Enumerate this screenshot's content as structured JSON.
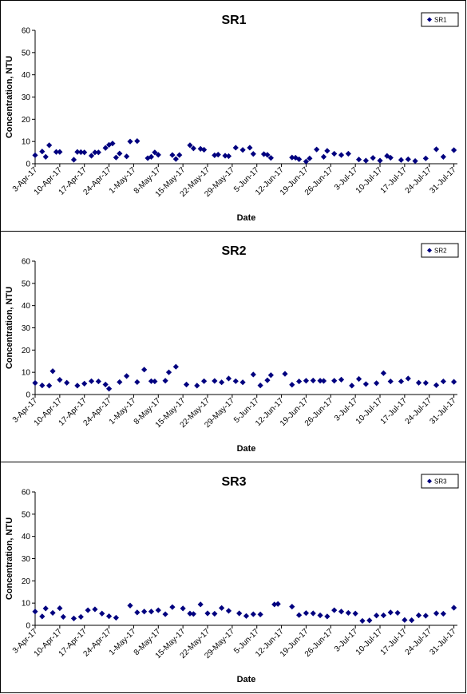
{
  "chart_data": [
    {
      "type": "scatter",
      "title": "SR1",
      "xlabel": "Date",
      "ylabel": "Concentration, NTU",
      "ylim": [
        0,
        60
      ],
      "yticks": [
        "0",
        "10",
        "20",
        "30",
        "40",
        "50",
        "60"
      ],
      "xlim": [
        "2017-04-03",
        "2017-08-01"
      ],
      "xtick_labels": [
        "3-Apr-17",
        "10-Apr-17",
        "17-Apr-17",
        "24-Apr-17",
        "1-May-17",
        "8-May-17",
        "15-May-17",
        "22-May-17",
        "29-May-17",
        "5-Jun-17",
        "12-Jun-17",
        "19-Jun-17",
        "26-Jun-17",
        "3-Jul-17",
        "10-Jul-17",
        "17-Jul-17",
        "24-Jul-17",
        "31-Jul-17"
      ],
      "grid": false,
      "legend_position": "top-right",
      "marker_color": "#00007f",
      "series": [
        {
          "name": "SR1",
          "x": [
            "2017-04-03",
            "2017-04-05",
            "2017-04-06",
            "2017-04-07",
            "2017-04-09",
            "2017-04-10",
            "2017-04-14",
            "2017-04-15",
            "2017-04-16",
            "2017-04-17",
            "2017-04-19",
            "2017-04-20",
            "2017-04-21",
            "2017-04-23",
            "2017-04-24",
            "2017-04-25",
            "2017-04-26",
            "2017-04-27",
            "2017-04-29",
            "2017-04-30",
            "2017-05-02",
            "2017-05-05",
            "2017-05-06",
            "2017-05-07",
            "2017-05-08",
            "2017-05-12",
            "2017-05-13",
            "2017-05-14",
            "2017-05-17",
            "2017-05-18",
            "2017-05-20",
            "2017-05-21",
            "2017-05-24",
            "2017-05-25",
            "2017-05-27",
            "2017-05-28",
            "2017-05-30",
            "2017-06-01",
            "2017-06-03",
            "2017-06-04",
            "2017-06-07",
            "2017-06-08",
            "2017-06-09",
            "2017-06-15",
            "2017-06-16",
            "2017-06-17",
            "2017-06-19",
            "2017-06-20",
            "2017-06-22",
            "2017-06-24",
            "2017-06-25",
            "2017-06-27",
            "2017-06-29",
            "2017-07-01",
            "2017-07-04",
            "2017-07-06",
            "2017-07-08",
            "2017-07-10",
            "2017-07-12",
            "2017-07-13",
            "2017-07-16",
            "2017-07-18",
            "2017-07-20",
            "2017-07-23",
            "2017-07-26",
            "2017-07-28",
            "2017-07-31"
          ],
          "y": [
            3.8,
            5.5,
            3.1,
            8.3,
            5.3,
            5.3,
            1.8,
            5.3,
            5.2,
            5.1,
            3.6,
            5.1,
            5.1,
            7.1,
            8.5,
            9.1,
            2.8,
            4.6,
            3.3,
            10.0,
            10.2,
            2.5,
            3.1,
            5.1,
            4.0,
            3.9,
            2.1,
            3.9,
            8.3,
            6.9,
            6.7,
            6.3,
            3.8,
            4.1,
            3.6,
            3.4,
            7.2,
            6.2,
            7.2,
            4.4,
            4.3,
            4.0,
            2.6,
            2.8,
            2.7,
            2.0,
            1.0,
            2.4,
            6.4,
            3.1,
            5.8,
            4.5,
            3.9,
            4.5,
            1.9,
            1.4,
            2.6,
            1.4,
            3.5,
            2.7,
            1.7,
            2.0,
            1.2,
            2.4,
            6.5,
            3.1,
            6.1
          ]
        }
      ]
    },
    {
      "type": "scatter",
      "title": "SR2",
      "xlabel": "Date",
      "ylabel": "Concentration, NTU",
      "ylim": [
        0,
        60
      ],
      "yticks": [
        "0",
        "10",
        "20",
        "30",
        "40",
        "50",
        "60"
      ],
      "xlim": [
        "2017-04-03",
        "2017-08-01"
      ],
      "xtick_labels": [
        "3-Apr-17",
        "10-Apr-17",
        "17-Apr-17",
        "24-Apr-17",
        "1-May-17",
        "8-May-17",
        "15-May-17",
        "22-May-17",
        "29-May-17",
        "5-Jun-17",
        "12-Jun-17",
        "19-Jun-17",
        "26-Jun-17",
        "3-Jul-17",
        "10-Jul-17",
        "17-Jul-17",
        "24-Jul-17",
        "31-Jul-17"
      ],
      "grid": false,
      "legend_position": "top-right",
      "marker_color": "#00007f",
      "series": [
        {
          "name": "SR2",
          "x": [
            "2017-04-03",
            "2017-04-05",
            "2017-04-07",
            "2017-04-08",
            "2017-04-10",
            "2017-04-12",
            "2017-04-15",
            "2017-04-17",
            "2017-04-19",
            "2017-04-21",
            "2017-04-23",
            "2017-04-24",
            "2017-04-27",
            "2017-04-29",
            "2017-05-02",
            "2017-05-04",
            "2017-05-06",
            "2017-05-07",
            "2017-05-10",
            "2017-05-11",
            "2017-05-13",
            "2017-05-16",
            "2017-05-19",
            "2017-05-21",
            "2017-05-24",
            "2017-05-26",
            "2017-05-28",
            "2017-05-30",
            "2017-06-01",
            "2017-06-04",
            "2017-06-06",
            "2017-06-08",
            "2017-06-09",
            "2017-06-13",
            "2017-06-15",
            "2017-06-17",
            "2017-06-19",
            "2017-06-21",
            "2017-06-23",
            "2017-06-24",
            "2017-06-27",
            "2017-06-29",
            "2017-07-02",
            "2017-07-04",
            "2017-07-06",
            "2017-07-09",
            "2017-07-11",
            "2017-07-13",
            "2017-07-16",
            "2017-07-18",
            "2017-07-21",
            "2017-07-23",
            "2017-07-26",
            "2017-07-28",
            "2017-07-31"
          ],
          "y": [
            5.2,
            4.1,
            4.0,
            10.5,
            6.6,
            5.3,
            4.0,
            4.9,
            6.0,
            5.9,
            4.5,
            2.6,
            5.6,
            8.3,
            5.6,
            11.2,
            6.0,
            5.9,
            6.2,
            10.0,
            12.5,
            4.5,
            4.0,
            6.0,
            6.1,
            5.5,
            7.2,
            6.0,
            5.5,
            9.0,
            4.1,
            6.4,
            8.7,
            9.3,
            4.4,
            5.9,
            6.2,
            6.3,
            6.2,
            6.1,
            6.2,
            6.7,
            4.0,
            7.0,
            4.7,
            5.1,
            9.6,
            5.9,
            5.9,
            7.2,
            5.3,
            5.2,
            4.2,
            5.9,
            5.7
          ]
        }
      ]
    },
    {
      "type": "scatter",
      "title": "SR3",
      "xlabel": "Date",
      "ylabel": "Concentration, NTU",
      "ylim": [
        0,
        60
      ],
      "yticks": [
        "0",
        "10",
        "20",
        "30",
        "40",
        "50",
        "60"
      ],
      "xlim": [
        "2017-04-03",
        "2017-08-01"
      ],
      "xtick_labels": [
        "3-Apr-17",
        "10-Apr-17",
        "17-Apr-17",
        "24-Apr-17",
        "1-May-17",
        "8-May-17",
        "15-May-17",
        "22-May-17",
        "29-May-17",
        "5-Jun-17",
        "12-Jun-17",
        "19-Jun-17",
        "26-Jun-17",
        "3-Jul-17",
        "10-Jul-17",
        "17-Jul-17",
        "24-Jul-17",
        "31-Jul-17"
      ],
      "grid": false,
      "legend_position": "top-right",
      "marker_color": "#00007f",
      "series": [
        {
          "name": "SR3",
          "x": [
            "2017-04-03",
            "2017-04-05",
            "2017-04-06",
            "2017-04-08",
            "2017-04-10",
            "2017-04-11",
            "2017-04-14",
            "2017-04-16",
            "2017-04-18",
            "2017-04-20",
            "2017-04-22",
            "2017-04-24",
            "2017-04-26",
            "2017-04-30",
            "2017-05-02",
            "2017-05-04",
            "2017-05-06",
            "2017-05-08",
            "2017-05-10",
            "2017-05-12",
            "2017-05-15",
            "2017-05-17",
            "2017-05-18",
            "2017-05-20",
            "2017-05-22",
            "2017-05-24",
            "2017-05-26",
            "2017-05-28",
            "2017-05-31",
            "2017-06-02",
            "2017-06-04",
            "2017-06-06",
            "2017-06-10",
            "2017-06-11",
            "2017-06-15",
            "2017-06-17",
            "2017-06-19",
            "2017-06-21",
            "2017-06-23",
            "2017-06-25",
            "2017-06-27",
            "2017-06-29",
            "2017-07-01",
            "2017-07-03",
            "2017-07-05",
            "2017-07-07",
            "2017-07-09",
            "2017-07-11",
            "2017-07-13",
            "2017-07-15",
            "2017-07-17",
            "2017-07-19",
            "2017-07-21",
            "2017-07-23",
            "2017-07-26",
            "2017-07-28",
            "2017-07-31"
          ],
          "y": [
            6.2,
            4.0,
            7.6,
            5.6,
            7.7,
            3.8,
            3.1,
            3.8,
            6.8,
            7.2,
            5.3,
            4.1,
            3.4,
            8.9,
            5.8,
            6.2,
            6.2,
            6.8,
            5.0,
            8.2,
            7.6,
            5.3,
            5.1,
            9.4,
            5.4,
            5.2,
            7.8,
            6.5,
            5.4,
            4.2,
            5.0,
            4.9,
            9.4,
            9.6,
            8.4,
            4.6,
            5.5,
            5.4,
            4.5,
            4.0,
            6.8,
            6.2,
            5.6,
            5.3,
            2.0,
            2.2,
            4.4,
            4.5,
            5.8,
            5.6,
            2.4,
            2.3,
            4.5,
            4.3,
            5.4,
            5.2,
            7.9
          ]
        }
      ]
    }
  ]
}
